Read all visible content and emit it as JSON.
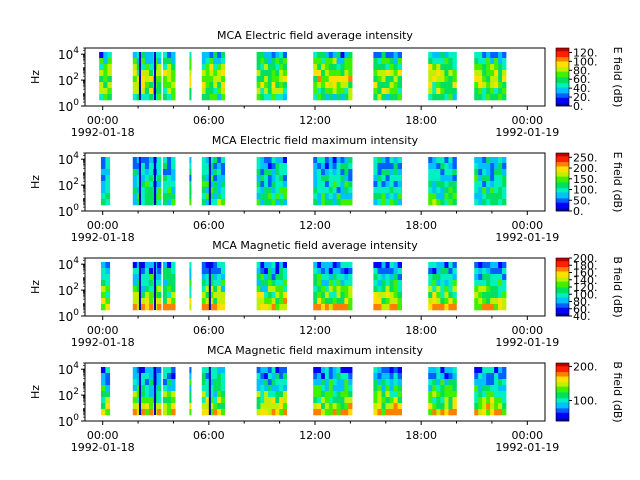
{
  "colors": {
    "colormap": [
      "#0000a0",
      "#0000ff",
      "#0060ff",
      "#00c0ff",
      "#00f0c0",
      "#00e060",
      "#40f000",
      "#c0f000",
      "#ffe000",
      "#ff8000",
      "#ff2000",
      "#c00000"
    ],
    "axis": "#000000",
    "background": "#ffffff"
  },
  "chart_data": [
    {
      "type": "heatmap",
      "title": "MCA  Electric field average intensity",
      "ylabel": "Hz",
      "ylim": [
        1,
        30000
      ],
      "y_scale": "log",
      "y_ticks": [
        {
          "value": 1,
          "base": "10",
          "exp": "0"
        },
        {
          "value": 100,
          "base": "10",
          "exp": "2"
        },
        {
          "value": 10000,
          "base": "10",
          "exp": "4"
        }
      ],
      "x_ticks": [
        {
          "time": "00:00",
          "date": "1992-01-18"
        },
        {
          "time": "06:00",
          "date": ""
        },
        {
          "time": "12:00",
          "date": ""
        },
        {
          "time": "18:00",
          "date": ""
        },
        {
          "time": "00:00",
          "date": "1992-01-19"
        }
      ],
      "xlim_hours": [
        -1,
        25
      ],
      "colorbar": {
        "label": "E field (dB)",
        "range": [
          0,
          130
        ],
        "ticks": [
          "0.",
          "20.",
          "40.",
          "60.",
          "80.",
          "100.",
          "120."
        ]
      },
      "segments_hours": [
        [
          -0.2,
          0.5
        ],
        [
          1.7,
          3.3
        ],
        [
          3.4,
          4.1
        ],
        [
          4.9,
          5.0
        ],
        [
          5.6,
          6.9
        ],
        [
          8.7,
          10.4
        ],
        [
          11.9,
          14.1
        ],
        [
          15.3,
          16.9
        ],
        [
          18.4,
          20.0
        ],
        [
          21.0,
          22.8
        ]
      ],
      "dropouts_hours": [
        [
          2.05,
          2.12
        ],
        [
          2.9,
          3.0
        ]
      ],
      "typical_level_db": 60
    },
    {
      "type": "heatmap",
      "title": "MCA  Electric field maximum intensity",
      "ylabel": "Hz",
      "ylim": [
        1,
        30000
      ],
      "y_scale": "log",
      "y_ticks": [
        {
          "value": 1,
          "base": "10",
          "exp": "0"
        },
        {
          "value": 100,
          "base": "10",
          "exp": "2"
        },
        {
          "value": 10000,
          "base": "10",
          "exp": "4"
        }
      ],
      "x_ticks": [
        {
          "time": "00:00",
          "date": "1992-01-18"
        },
        {
          "time": "06:00",
          "date": ""
        },
        {
          "time": "12:00",
          "date": ""
        },
        {
          "time": "18:00",
          "date": ""
        },
        {
          "time": "00:00",
          "date": "1992-01-19"
        }
      ],
      "xlim_hours": [
        -1,
        25
      ],
      "colorbar": {
        "label": "E field (dB)",
        "range": [
          0,
          270
        ],
        "ticks": [
          "0.",
          "50.",
          "100.",
          "150.",
          "200.",
          "250."
        ]
      },
      "segments_hours": [
        [
          -0.1,
          0.4
        ],
        [
          1.7,
          3.3
        ],
        [
          3.4,
          4.1
        ],
        [
          4.9,
          5.0
        ],
        [
          5.6,
          6.9
        ],
        [
          8.7,
          10.4
        ],
        [
          11.9,
          14.1
        ],
        [
          15.3,
          16.9
        ],
        [
          18.4,
          20.0
        ],
        [
          21.0,
          22.8
        ]
      ],
      "dropouts_hours": [
        [
          2.05,
          2.12
        ],
        [
          2.9,
          3.0
        ],
        [
          6.0,
          6.1
        ]
      ],
      "typical_level_db": 100
    },
    {
      "type": "heatmap",
      "title": "MCA  Magnetic field average intensity",
      "ylabel": "Hz",
      "ylim": [
        1,
        30000
      ],
      "y_scale": "log",
      "y_ticks": [
        {
          "value": 1,
          "base": "10",
          "exp": "0"
        },
        {
          "value": 100,
          "base": "10",
          "exp": "2"
        },
        {
          "value": 10000,
          "base": "10",
          "exp": "4"
        }
      ],
      "x_ticks": [
        {
          "time": "00:00",
          "date": "1992-01-18"
        },
        {
          "time": "06:00",
          "date": ""
        },
        {
          "time": "12:00",
          "date": ""
        },
        {
          "time": "18:00",
          "date": ""
        },
        {
          "time": "00:00",
          "date": "1992-01-19"
        }
      ],
      "xlim_hours": [
        -1,
        25
      ],
      "colorbar": {
        "label": "B field (dB)",
        "range": [
          40,
          200
        ],
        "ticks": [
          "40.",
          "60.",
          "80.",
          "100.",
          "120.",
          "140.",
          "160.",
          "180.",
          "200."
        ]
      },
      "segments_hours": [
        [
          -0.1,
          0.4
        ],
        [
          1.7,
          3.3
        ],
        [
          3.4,
          4.1
        ],
        [
          4.9,
          5.0
        ],
        [
          5.6,
          6.9
        ],
        [
          8.7,
          10.4
        ],
        [
          11.9,
          14.1
        ],
        [
          15.3,
          16.9
        ],
        [
          18.4,
          20.0
        ],
        [
          21.0,
          22.8
        ]
      ],
      "dropouts_hours": [
        [
          2.05,
          2.12
        ],
        [
          2.9,
          3.0
        ],
        [
          6.0,
          6.1
        ]
      ],
      "typical_level_db": 110
    },
    {
      "type": "heatmap",
      "title": "MCA  Magnetic field maximum intensity",
      "ylabel": "Hz",
      "ylim": [
        1,
        30000
      ],
      "y_scale": "log",
      "y_ticks": [
        {
          "value": 1,
          "base": "10",
          "exp": "0"
        },
        {
          "value": 100,
          "base": "10",
          "exp": "2"
        },
        {
          "value": 10000,
          "base": "10",
          "exp": "4"
        }
      ],
      "x_ticks": [
        {
          "time": "00:00",
          "date": "1992-01-18"
        },
        {
          "time": "06:00",
          "date": ""
        },
        {
          "time": "12:00",
          "date": ""
        },
        {
          "time": "18:00",
          "date": ""
        },
        {
          "time": "00:00",
          "date": "1992-01-19"
        }
      ],
      "xlim_hours": [
        -1,
        25
      ],
      "colorbar": {
        "label": "B field (dB)",
        "range": [
          40,
          210
        ],
        "ticks": [
          "100.",
          "200."
        ]
      },
      "segments_hours": [
        [
          -0.1,
          0.4
        ],
        [
          1.7,
          3.3
        ],
        [
          3.4,
          4.1
        ],
        [
          4.9,
          5.0
        ],
        [
          5.6,
          6.9
        ],
        [
          8.7,
          10.4
        ],
        [
          11.9,
          14.1
        ],
        [
          15.3,
          16.9
        ],
        [
          18.4,
          20.0
        ],
        [
          21.0,
          22.8
        ]
      ],
      "dropouts_hours": [
        [
          2.05,
          2.12
        ],
        [
          2.9,
          3.0
        ],
        [
          6.0,
          6.1
        ]
      ],
      "typical_level_db": 120
    }
  ]
}
